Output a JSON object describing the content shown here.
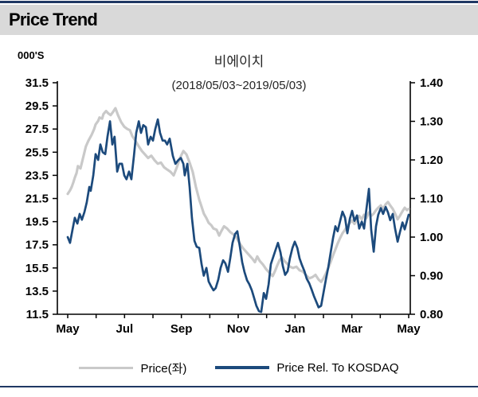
{
  "header": {
    "title": "Price Trend"
  },
  "colors": {
    "accent_navy": "#1c4a7c",
    "series_gray": "#c9c9c9",
    "header_bg": "#d9d9d9",
    "rule_navy": "#1f3864",
    "axis_black": "#000000"
  },
  "chart_data": {
    "type": "line",
    "title": "비에이치",
    "subtitle": "(2018/05/03~2019/05/03)",
    "unit_label": "000'S",
    "legend_position": "bottom",
    "x_axis": {
      "tick_labels": [
        "May",
        "Jul",
        "Sep",
        "Nov",
        "Jan",
        "Mar",
        "May"
      ],
      "months_total": 12,
      "label_every_months": 2
    },
    "left_axis": {
      "min": 11.5,
      "max": 31.5,
      "ticks": [
        "31.5",
        "29.5",
        "27.5",
        "25.5",
        "23.5",
        "21.5",
        "19.5",
        "17.5",
        "15.5",
        "13.5",
        "11.5"
      ]
    },
    "right_axis": {
      "min": 0.8,
      "max": 1.4,
      "ticks": [
        "1.40",
        "1.30",
        "1.20",
        "1.10",
        "1.00",
        "0.90",
        "0.80"
      ]
    },
    "series": [
      {
        "name": "Price(좌)",
        "axis": "left",
        "color": "#c9c9c9",
        "width": 3.2,
        "points": [
          [
            0.0,
            21.9
          ],
          [
            0.08,
            22.2
          ],
          [
            0.14,
            22.5
          ],
          [
            0.2,
            22.9
          ],
          [
            0.25,
            23.3
          ],
          [
            0.31,
            23.7
          ],
          [
            0.36,
            24.3
          ],
          [
            0.45,
            24.1
          ],
          [
            0.53,
            24.9
          ],
          [
            0.64,
            26.0
          ],
          [
            0.73,
            26.5
          ],
          [
            0.84,
            27.0
          ],
          [
            0.93,
            27.5
          ],
          [
            0.98,
            27.9
          ],
          [
            1.07,
            28.2
          ],
          [
            1.12,
            28.5
          ],
          [
            1.21,
            28.4
          ],
          [
            1.26,
            28.8
          ],
          [
            1.35,
            29.05
          ],
          [
            1.43,
            28.85
          ],
          [
            1.51,
            28.7
          ],
          [
            1.6,
            29.0
          ],
          [
            1.68,
            29.3
          ],
          [
            1.77,
            28.7
          ],
          [
            1.88,
            28.1
          ],
          [
            1.99,
            27.7
          ],
          [
            2.1,
            27.5
          ],
          [
            2.19,
            27.4
          ],
          [
            2.27,
            26.9
          ],
          [
            2.38,
            26.5
          ],
          [
            2.5,
            26.0
          ],
          [
            2.61,
            25.6
          ],
          [
            2.72,
            25.3
          ],
          [
            2.83,
            25.0
          ],
          [
            2.94,
            25.2
          ],
          [
            3.06,
            24.8
          ],
          [
            3.17,
            24.5
          ],
          [
            3.28,
            24.6
          ],
          [
            3.39,
            24.2
          ],
          [
            3.5,
            24.0
          ],
          [
            3.62,
            23.8
          ],
          [
            3.73,
            23.5
          ],
          [
            3.84,
            24.2
          ],
          [
            3.95,
            25.0
          ],
          [
            4.07,
            25.6
          ],
          [
            4.18,
            25.3
          ],
          [
            4.29,
            24.6
          ],
          [
            4.4,
            23.8
          ],
          [
            4.51,
            22.5
          ],
          [
            4.63,
            21.4
          ],
          [
            4.71,
            20.8
          ],
          [
            4.79,
            20.2
          ],
          [
            4.88,
            19.8
          ],
          [
            4.96,
            19.4
          ],
          [
            5.05,
            19.2
          ],
          [
            5.13,
            18.9
          ],
          [
            5.24,
            18.8
          ],
          [
            5.33,
            18.3
          ],
          [
            5.41,
            18.7
          ],
          [
            5.5,
            19.1
          ],
          [
            5.61,
            18.9
          ],
          [
            5.72,
            18.6
          ],
          [
            5.83,
            18.4
          ],
          [
            5.94,
            18.1
          ],
          [
            6.06,
            17.6
          ],
          [
            6.17,
            17.2
          ],
          [
            6.28,
            16.9
          ],
          [
            6.39,
            16.6
          ],
          [
            6.5,
            16.3
          ],
          [
            6.59,
            16.0
          ],
          [
            6.67,
            16.5
          ],
          [
            6.76,
            16.1
          ],
          [
            6.87,
            15.8
          ],
          [
            6.98,
            15.4
          ],
          [
            7.09,
            15.1
          ],
          [
            7.21,
            14.8
          ],
          [
            7.29,
            15.2
          ],
          [
            7.37,
            15.7
          ],
          [
            7.46,
            16.2
          ],
          [
            7.54,
            16.4
          ],
          [
            7.63,
            16.1
          ],
          [
            7.71,
            15.9
          ],
          [
            7.82,
            15.6
          ],
          [
            7.93,
            15.5
          ],
          [
            8.05,
            15.6
          ],
          [
            8.16,
            15.3
          ],
          [
            8.27,
            15.2
          ],
          [
            8.38,
            14.9
          ],
          [
            8.5,
            14.6
          ],
          [
            8.61,
            14.7
          ],
          [
            8.72,
            14.9
          ],
          [
            8.83,
            14.5
          ],
          [
            8.92,
            14.3
          ],
          [
            9.0,
            14.6
          ],
          [
            9.08,
            15.0
          ],
          [
            9.17,
            15.5
          ],
          [
            9.25,
            16.0
          ],
          [
            9.34,
            16.6
          ],
          [
            9.42,
            17.1
          ],
          [
            9.5,
            17.6
          ],
          [
            9.59,
            18.1
          ],
          [
            9.67,
            18.5
          ],
          [
            9.76,
            18.8
          ],
          [
            9.84,
            19.1
          ],
          [
            9.93,
            19.4
          ],
          [
            10.01,
            19.6
          ],
          [
            10.09,
            19.3
          ],
          [
            10.18,
            19.7
          ],
          [
            10.26,
            20.0
          ],
          [
            10.35,
            19.7
          ],
          [
            10.43,
            20.1
          ],
          [
            10.51,
            19.8
          ],
          [
            10.6,
            20.3
          ],
          [
            10.68,
            20.0
          ],
          [
            10.77,
            20.2
          ],
          [
            10.85,
            20.5
          ],
          [
            10.93,
            20.7
          ],
          [
            11.02,
            20.9
          ],
          [
            11.1,
            20.6
          ],
          [
            11.19,
            21.0
          ],
          [
            11.27,
            21.2
          ],
          [
            11.35,
            20.9
          ],
          [
            11.44,
            20.6
          ],
          [
            11.52,
            20.2
          ],
          [
            11.61,
            19.7
          ],
          [
            11.69,
            20.0
          ],
          [
            11.78,
            20.4
          ],
          [
            11.86,
            20.7
          ],
          [
            11.94,
            20.5
          ],
          [
            12.0,
            20.6
          ]
        ]
      },
      {
        "name": "Price Rel. To KOSDAQ",
        "axis": "right",
        "color": "#1c4a7c",
        "width": 2.7,
        "points": [
          [
            0.0,
            1.0
          ],
          [
            0.08,
            0.985
          ],
          [
            0.17,
            1.02
          ],
          [
            0.25,
            1.05
          ],
          [
            0.34,
            1.035
          ],
          [
            0.42,
            1.06
          ],
          [
            0.5,
            1.045
          ],
          [
            0.59,
            1.065
          ],
          [
            0.67,
            1.09
          ],
          [
            0.76,
            1.13
          ],
          [
            0.81,
            1.12
          ],
          [
            0.9,
            1.16
          ],
          [
            0.98,
            1.215
          ],
          [
            1.07,
            1.2
          ],
          [
            1.15,
            1.24
          ],
          [
            1.23,
            1.22
          ],
          [
            1.32,
            1.215
          ],
          [
            1.4,
            1.26
          ],
          [
            1.49,
            1.3
          ],
          [
            1.57,
            1.24
          ],
          [
            1.65,
            1.26
          ],
          [
            1.74,
            1.17
          ],
          [
            1.82,
            1.19
          ],
          [
            1.91,
            1.19
          ],
          [
            1.99,
            1.16
          ],
          [
            2.07,
            1.15
          ],
          [
            2.16,
            1.17
          ],
          [
            2.24,
            1.15
          ],
          [
            2.33,
            1.21
          ],
          [
            2.41,
            1.27
          ],
          [
            2.5,
            1.3
          ],
          [
            2.58,
            1.27
          ],
          [
            2.66,
            1.29
          ],
          [
            2.75,
            1.285
          ],
          [
            2.83,
            1.24
          ],
          [
            2.92,
            1.26
          ],
          [
            3.0,
            1.25
          ],
          [
            3.08,
            1.28
          ],
          [
            3.17,
            1.305
          ],
          [
            3.25,
            1.27
          ],
          [
            3.34,
            1.25
          ],
          [
            3.42,
            1.25
          ],
          [
            3.5,
            1.24
          ],
          [
            3.59,
            1.255
          ],
          [
            3.7,
            1.21
          ],
          [
            3.79,
            1.19
          ],
          [
            3.9,
            1.2
          ],
          [
            3.98,
            1.205
          ],
          [
            4.07,
            1.19
          ],
          [
            4.12,
            1.16
          ],
          [
            4.21,
            1.19
          ],
          [
            4.29,
            1.13
          ],
          [
            4.37,
            1.05
          ],
          [
            4.46,
            0.99
          ],
          [
            4.54,
            0.975
          ],
          [
            4.63,
            0.972
          ],
          [
            4.71,
            0.93
          ],
          [
            4.79,
            0.9
          ],
          [
            4.88,
            0.92
          ],
          [
            4.96,
            0.885
          ],
          [
            5.05,
            0.872
          ],
          [
            5.13,
            0.862
          ],
          [
            5.21,
            0.868
          ],
          [
            5.3,
            0.89
          ],
          [
            5.38,
            0.92
          ],
          [
            5.47,
            0.94
          ],
          [
            5.55,
            0.932
          ],
          [
            5.64,
            0.91
          ],
          [
            5.72,
            0.945
          ],
          [
            5.8,
            0.985
          ],
          [
            5.89,
            1.008
          ],
          [
            5.97,
            1.015
          ],
          [
            6.06,
            0.975
          ],
          [
            6.14,
            0.935
          ],
          [
            6.22,
            0.91
          ],
          [
            6.31,
            0.888
          ],
          [
            6.39,
            0.878
          ],
          [
            6.48,
            0.862
          ],
          [
            6.56,
            0.842
          ],
          [
            6.64,
            0.822
          ],
          [
            6.73,
            0.808
          ],
          [
            6.81,
            0.806
          ],
          [
            6.9,
            0.855
          ],
          [
            6.98,
            0.84
          ],
          [
            7.07,
            0.878
          ],
          [
            7.15,
            0.93
          ],
          [
            7.23,
            0.948
          ],
          [
            7.32,
            0.968
          ],
          [
            7.4,
            0.985
          ],
          [
            7.49,
            0.96
          ],
          [
            7.57,
            0.925
          ],
          [
            7.65,
            0.902
          ],
          [
            7.74,
            0.912
          ],
          [
            7.82,
            0.945
          ],
          [
            7.91,
            0.972
          ],
          [
            7.99,
            0.988
          ],
          [
            8.08,
            0.972
          ],
          [
            8.16,
            0.945
          ],
          [
            8.24,
            0.928
          ],
          [
            8.33,
            0.912
          ],
          [
            8.41,
            0.892
          ],
          [
            8.5,
            0.88
          ],
          [
            8.58,
            0.865
          ],
          [
            8.66,
            0.848
          ],
          [
            8.75,
            0.832
          ],
          [
            8.83,
            0.818
          ],
          [
            8.92,
            0.822
          ],
          [
            9.0,
            0.855
          ],
          [
            9.08,
            0.888
          ],
          [
            9.17,
            0.922
          ],
          [
            9.25,
            0.958
          ],
          [
            9.34,
            0.998
          ],
          [
            9.42,
            1.028
          ],
          [
            9.5,
            1.015
          ],
          [
            9.59,
            1.042
          ],
          [
            9.67,
            1.066
          ],
          [
            9.76,
            1.05
          ],
          [
            9.84,
            1.01
          ],
          [
            9.93,
            1.048
          ],
          [
            10.01,
            1.068
          ],
          [
            10.09,
            1.042
          ],
          [
            10.18,
            1.056
          ],
          [
            10.26,
            1.022
          ],
          [
            10.35,
            1.04
          ],
          [
            10.43,
            1.022
          ],
          [
            10.51,
            1.072
          ],
          [
            10.6,
            1.125
          ],
          [
            10.68,
            1.02
          ],
          [
            10.77,
            0.962
          ],
          [
            10.85,
            1.028
          ],
          [
            10.93,
            1.058
          ],
          [
            11.02,
            1.075
          ],
          [
            11.1,
            1.06
          ],
          [
            11.19,
            1.078
          ],
          [
            11.27,
            1.064
          ],
          [
            11.35,
            1.044
          ],
          [
            11.44,
            1.06
          ],
          [
            11.52,
            1.022
          ],
          [
            11.61,
            0.988
          ],
          [
            11.69,
            1.012
          ],
          [
            11.78,
            1.038
          ],
          [
            11.86,
            1.02
          ],
          [
            11.94,
            1.042
          ],
          [
            12.0,
            1.058
          ]
        ]
      }
    ]
  }
}
